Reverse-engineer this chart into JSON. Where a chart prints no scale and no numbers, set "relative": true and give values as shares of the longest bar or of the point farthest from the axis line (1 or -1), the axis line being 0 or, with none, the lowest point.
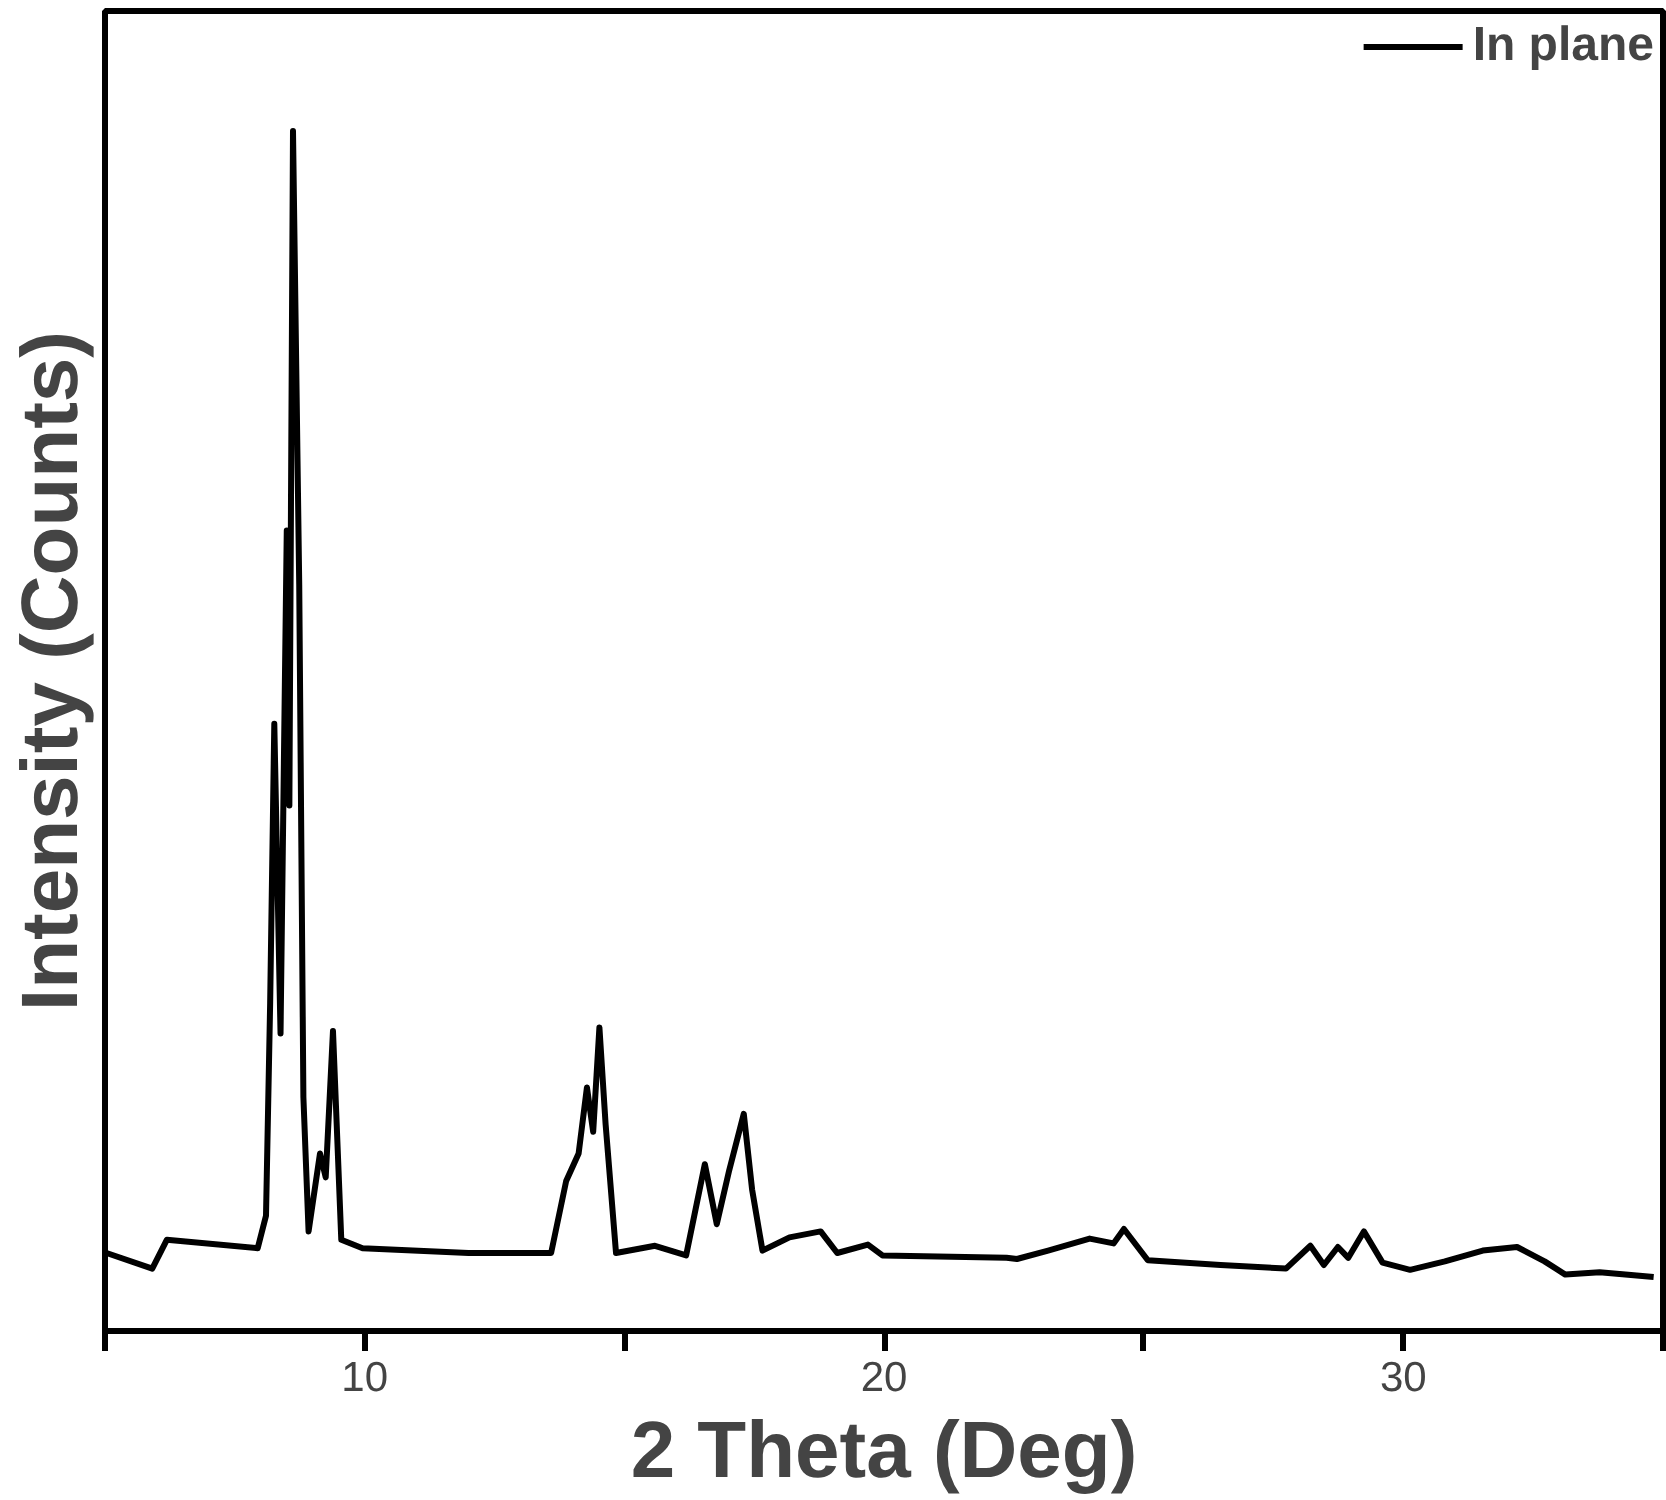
{
  "chart_data": {
    "type": "line",
    "relative": true,
    "xlabel": "2 Theta (Deg)",
    "ylabel": "Intensity (Counts)",
    "xlim": [
      5,
      35
    ],
    "xticks": [
      {
        "value": 5,
        "label": null
      },
      10,
      {
        "value": 15,
        "label": null
      },
      20,
      {
        "value": 25,
        "label": null
      },
      30,
      {
        "value": 35,
        "label": null
      }
    ],
    "legend": "top right",
    "grid": false,
    "series": [
      {
        "name": "In plane",
        "color": "#000000",
        "x": [
          5.03,
          5.91,
          6.19,
          7.94,
          8.1,
          8.18,
          8.26,
          8.38,
          8.5,
          8.55,
          8.62,
          8.74,
          8.82,
          8.92,
          9.14,
          9.25,
          9.39,
          9.55,
          9.96,
          12.0,
          13.59,
          13.88,
          14.12,
          14.28,
          14.4,
          14.52,
          14.64,
          14.84,
          15.59,
          16.19,
          16.55,
          16.78,
          17.02,
          17.3,
          17.46,
          17.66,
          18.18,
          18.78,
          19.1,
          19.69,
          19.97,
          22.36,
          22.56,
          23.16,
          23.96,
          24.42,
          24.62,
          25.08,
          26.48,
          27.74,
          28.21,
          28.47,
          28.74,
          28.94,
          29.24,
          29.6,
          30.13,
          30.8,
          31.53,
          32.19,
          32.72,
          33.12,
          33.78,
          34.82
        ],
        "values": [
          0.065,
          0.052,
          0.076,
          0.069,
          0.096,
          0.273,
          0.506,
          0.248,
          0.667,
          0.438,
          1.0,
          0.622,
          0.195,
          0.083,
          0.148,
          0.128,
          0.25,
          0.076,
          0.069,
          0.065,
          0.065,
          0.125,
          0.148,
          0.203,
          0.166,
          0.253,
          0.172,
          0.065,
          0.071,
          0.063,
          0.139,
          0.089,
          0.134,
          0.181,
          0.118,
          0.067,
          0.078,
          0.083,
          0.065,
          0.072,
          0.063,
          0.061,
          0.06,
          0.067,
          0.077,
          0.073,
          0.085,
          0.059,
          0.055,
          0.052,
          0.071,
          0.055,
          0.07,
          0.061,
          0.083,
          0.057,
          0.051,
          0.058,
          0.067,
          0.07,
          0.058,
          0.047,
          0.049,
          0.045
        ]
      }
    ]
  }
}
